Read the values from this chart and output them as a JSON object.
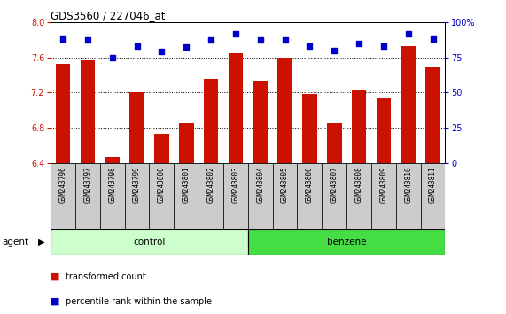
{
  "title": "GDS3560 / 227046_at",
  "samples": [
    "GSM243796",
    "GSM243797",
    "GSM243798",
    "GSM243799",
    "GSM243800",
    "GSM243801",
    "GSM243802",
    "GSM243803",
    "GSM243804",
    "GSM243805",
    "GSM243806",
    "GSM243807",
    "GSM243808",
    "GSM243809",
    "GSM243810",
    "GSM243811"
  ],
  "red_values": [
    7.53,
    7.57,
    6.47,
    7.2,
    6.73,
    6.85,
    7.35,
    7.65,
    7.33,
    7.6,
    7.18,
    6.85,
    7.23,
    7.14,
    7.73,
    7.5
  ],
  "blue_values": [
    88,
    87,
    75,
    83,
    79,
    82,
    87,
    92,
    87,
    87,
    83,
    80,
    85,
    83,
    92,
    88
  ],
  "ylim_left": [
    6.4,
    8.0
  ],
  "ylim_right": [
    0,
    100
  ],
  "yticks_left": [
    6.4,
    6.8,
    7.2,
    7.6,
    8.0
  ],
  "yticks_right": [
    0,
    25,
    50,
    75,
    100
  ],
  "bar_color": "#cc1100",
  "dot_color": "#0000cc",
  "control_count": 8,
  "benzene_count": 8,
  "control_color": "#ccffcc",
  "benzene_color": "#44dd44",
  "agent_label": "agent",
  "control_label": "control",
  "benzene_label": "benzene",
  "legend_red": "transformed count",
  "legend_blue": "percentile rank within the sample",
  "bar_width": 0.6,
  "bg_color": "#ffffff",
  "label_box_color": "#cccccc"
}
